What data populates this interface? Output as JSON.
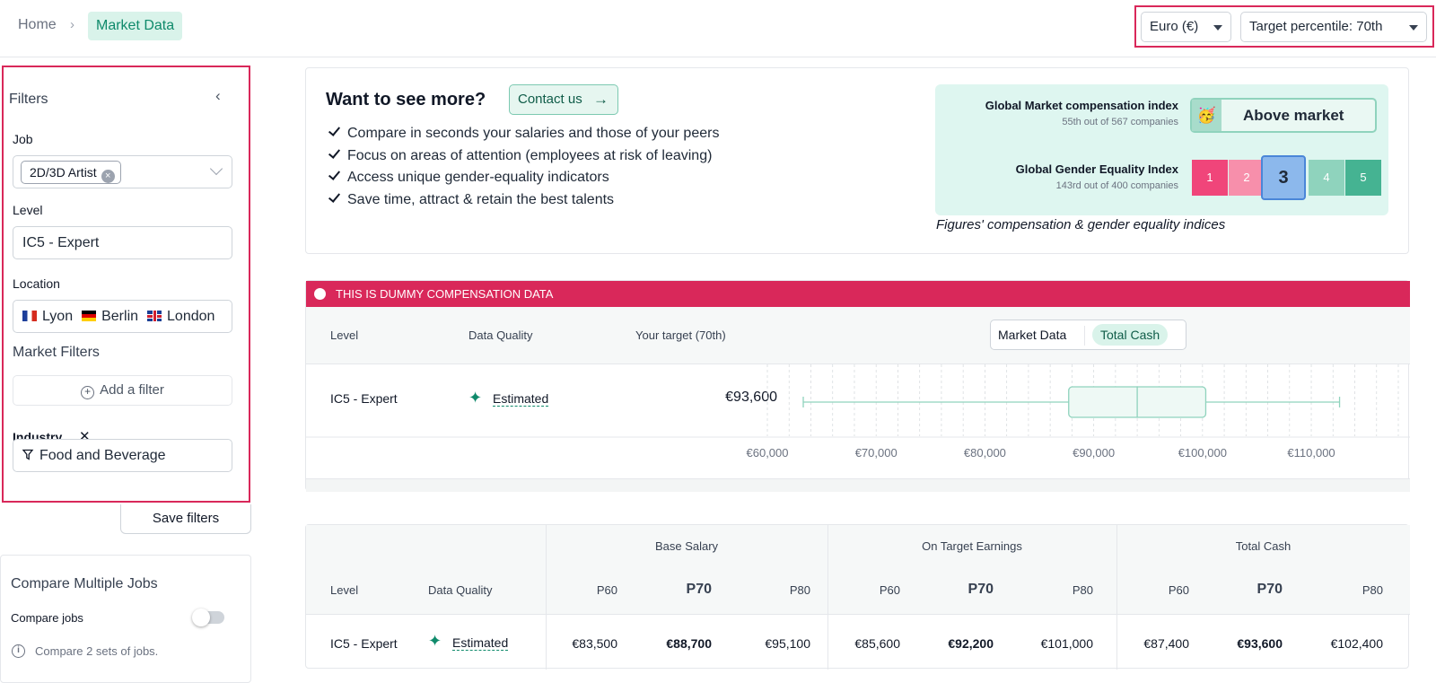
{
  "breadcrumb": {
    "home": "Home",
    "separator": "›",
    "current": "Market Data"
  },
  "top_controls": {
    "currency": "Euro (€)",
    "percentile": "Target percentile: 70th"
  },
  "filters": {
    "title": "Filters",
    "collapse_icon": "‹",
    "job": {
      "label": "Job",
      "chip": "2D/3D Artist",
      "chip_remove": "×"
    },
    "level": {
      "label": "Level",
      "value": "IC5 - Expert"
    },
    "location": {
      "label": "Location",
      "items": [
        "Lyon",
        "Berlin",
        "London"
      ]
    },
    "market_filters_title": "Market Filters",
    "add_filter": "Add a filter",
    "industry": {
      "label": "Industry",
      "remove": "✕",
      "value": "Food and Beverage"
    }
  },
  "save_filters": "Save filters",
  "compare": {
    "title": "Compare Multiple Jobs",
    "toggle_label": "Compare jobs",
    "toggle_on": false,
    "hint": "Compare 2 sets of jobs."
  },
  "promo": {
    "title": "Want to see more?",
    "contact": "Contact us",
    "bullets": [
      "Compare in seconds your salaries and those of your peers",
      "Focus on areas of attention (employees at risk of leaving)",
      "Access unique gender-equality indicators",
      "Save time, attract & retain the best talents"
    ],
    "market_index": {
      "label": "Global Market compensation index",
      "sub": "55th out of 567 companies",
      "value": "Above market",
      "emoji": "🥳"
    },
    "gender_index": {
      "label": "Global Gender Equality Index",
      "sub": "143rd out of 400 companies",
      "scale": [
        "1",
        "2",
        "3",
        "4",
        "5"
      ],
      "scale_colors": [
        "#f0457a",
        "#f78fab",
        "#8cb8ec",
        "#8fd3bd",
        "#45b392"
      ],
      "selected": 3
    },
    "caption": "Figures' compensation & gender equality indices"
  },
  "banner": {
    "text": "THIS IS DUMMY COMPENSATION DATA",
    "color": "#d9285a"
  },
  "boxplot": {
    "headers": {
      "level": "Level",
      "quality": "Data Quality",
      "target": "Your target (70th)"
    },
    "toggle": {
      "left": "Market Data",
      "right": "Total Cash"
    },
    "row": {
      "level": "IC5 - Expert",
      "quality": "Estimated",
      "target": "€93,600"
    },
    "axis_ticks": [
      "€60,000",
      "€70,000",
      "€80,000",
      "€90,000",
      "€100,000",
      "€110,000"
    ]
  },
  "chart_data": {
    "type": "boxplot",
    "title": "",
    "x_range": [
      60000,
      118000
    ],
    "tick_values": [
      60000,
      70000,
      80000,
      90000,
      100000,
      110000
    ],
    "series": [
      {
        "min": 63300,
        "q1": 87700,
        "median": 94000,
        "q3": 100300,
        "max": 112600
      }
    ],
    "color": "#8fd3bd"
  },
  "table": {
    "level_header": "Level",
    "quality_header": "Data Quality",
    "groups": [
      "Base Salary",
      "On Target Earnings",
      "Total Cash"
    ],
    "percentiles": [
      "P60",
      "P70",
      "P80"
    ],
    "row": {
      "level": "IC5 - Expert",
      "quality": "Estimated",
      "base": [
        "€83,500",
        "€88,700",
        "€95,100"
      ],
      "ote": [
        "€85,600",
        "€92,200",
        "€101,000"
      ],
      "total": [
        "€87,400",
        "€93,600",
        "€102,400"
      ]
    }
  }
}
